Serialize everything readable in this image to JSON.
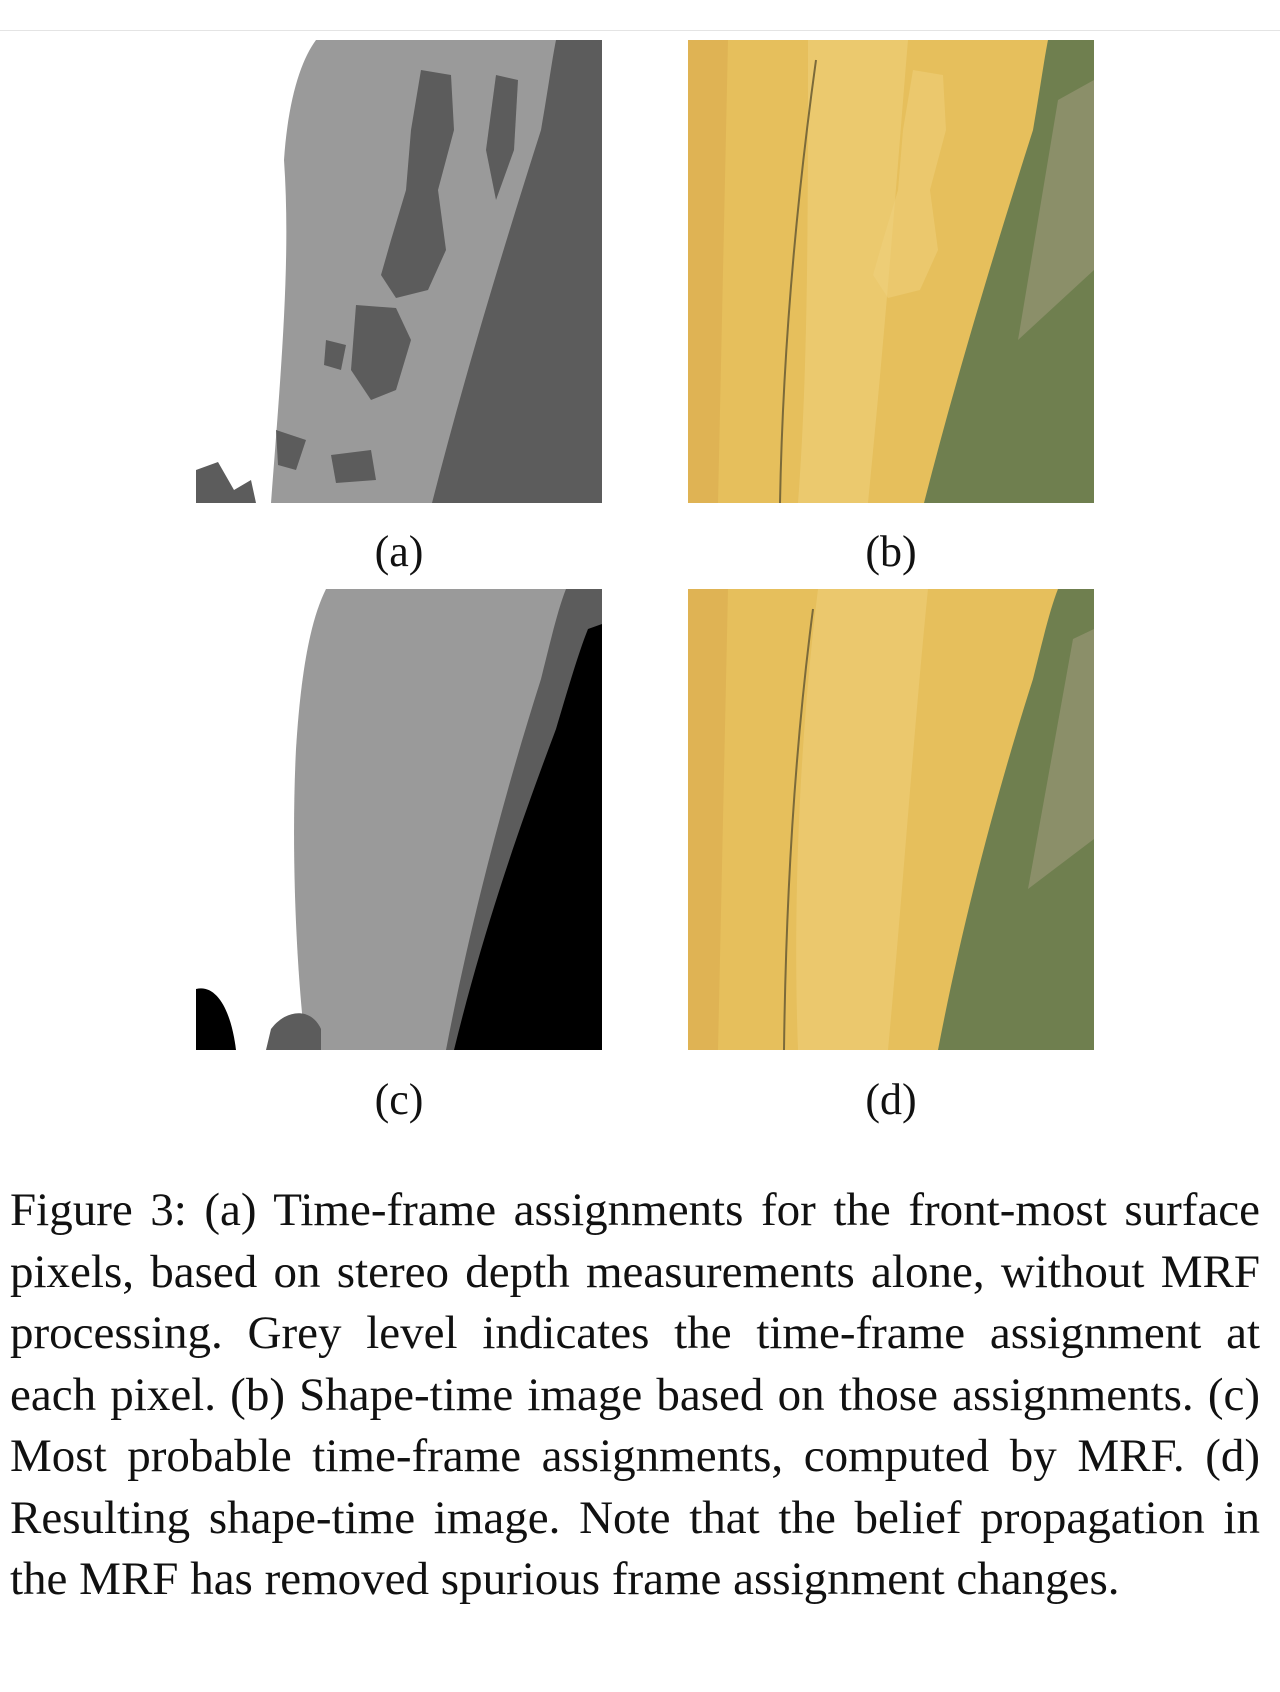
{
  "figure": {
    "panels": [
      {
        "id": "a",
        "label": "(a)",
        "kind": "grey-level time-frame assignment map (stereo only)"
      },
      {
        "id": "b",
        "label": "(b)",
        "kind": "shape-time image"
      },
      {
        "id": "c",
        "label": "(c)",
        "kind": "grey-level time-frame assignment map (MRF)"
      },
      {
        "id": "d",
        "label": "(d)",
        "kind": "shape-time image"
      }
    ],
    "caption": "Figure 3:  (a) Time-frame assignments for the front-most surface pixels, based on stereo depth measurements alone, without MRF processing.  Grey level indicates the time-frame assignment at each pixel. (b) Shape-time image based on those assignments. (c) Most probable time-frame assignments, computed by MRF. (d) Resulting shape-time image. Note that the belief propagation in the MRF has removed spurious frame assignment changes.",
    "colors": {
      "grey_light": "#9a9a9a",
      "grey_dark": "#5c5c5c",
      "black": "#000000",
      "white": "#ffffff",
      "yellow": "#e6bf5c",
      "yellow_light": "#efd27d",
      "green": "#6f7f4f"
    }
  }
}
